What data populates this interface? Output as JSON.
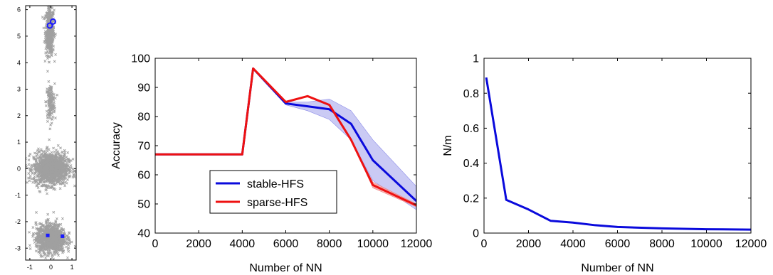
{
  "chart_data": [
    {
      "type": "scatter",
      "xlim": [
        -1.2,
        1.2
      ],
      "ylim": [
        -3.45,
        6.15
      ],
      "xticks": [
        -1,
        0,
        1
      ],
      "yticks": [
        -3,
        -2,
        -1,
        0,
        1,
        2,
        3,
        4,
        5,
        6
      ],
      "grid": false,
      "clusters": [
        {
          "cx": -0.05,
          "cy": 5.2,
          "sx": 0.1,
          "sy": 0.45,
          "n": 500
        },
        {
          "cx": -0.02,
          "cy": 2.5,
          "sx": 0.1,
          "sy": 0.35,
          "n": 160
        },
        {
          "cx": 0.0,
          "cy": 0.0,
          "sx": 0.4,
          "sy": 0.3,
          "n": 1300
        },
        {
          "cx": 0.0,
          "cy": -2.65,
          "sx": 0.35,
          "sy": 0.28,
          "n": 1000
        }
      ],
      "highlight_circles": [
        [
          -0.05,
          5.4
        ],
        [
          0.1,
          5.55
        ]
      ],
      "highlight_stars": [
        [
          -0.15,
          -2.52
        ],
        [
          0.55,
          -2.55
        ]
      ],
      "colors": {
        "background_points": "#a0a0a0",
        "highlight": "#1a1aff"
      }
    },
    {
      "type": "line",
      "xlabel": "Number of NN",
      "ylabel": "Accuracy",
      "xlim": [
        0,
        12000
      ],
      "ylim": [
        40,
        100
      ],
      "xticks": [
        0,
        2000,
        4000,
        6000,
        8000,
        10000,
        12000
      ],
      "yticks": [
        40,
        50,
        60,
        70,
        80,
        90,
        100
      ],
      "grid": false,
      "legend_position": "lower-center",
      "series": [
        {
          "name": "stable-HFS",
          "color": "#0a0adc",
          "x": [
            0,
            4000,
            4500,
            6000,
            7000,
            8000,
            9000,
            10000,
            12000
          ],
          "y": [
            67,
            67,
            96.5,
            84.5,
            83.5,
            82.5,
            77.5,
            65,
            51
          ],
          "band_upper": [
            67,
            67,
            96.5,
            85,
            85,
            86,
            82,
            72,
            56
          ],
          "band_lower": [
            67,
            67,
            96.5,
            84,
            82,
            79,
            72,
            58,
            48
          ]
        },
        {
          "name": "sparse-HFS",
          "color": "#ee1111",
          "x": [
            0,
            4000,
            4500,
            6000,
            7000,
            8000,
            9000,
            10000,
            12000
          ],
          "y": [
            67,
            67,
            96.5,
            85,
            87,
            84,
            72,
            56.5,
            49.5
          ],
          "band_upper": [
            67,
            67,
            96.5,
            85,
            87,
            84,
            72,
            57.5,
            50
          ],
          "band_lower": [
            67,
            67,
            96.5,
            85,
            87,
            84,
            72,
            55.5,
            49
          ]
        }
      ],
      "colors": {
        "band": "#b8b8f0"
      }
    },
    {
      "type": "line",
      "xlabel": "Number of NN",
      "ylabel": "N/m",
      "xlim": [
        0,
        12000
      ],
      "ylim": [
        0,
        1
      ],
      "xticks": [
        0,
        2000,
        4000,
        6000,
        8000,
        10000,
        12000
      ],
      "yticks": [
        0,
        0.2,
        0.4,
        0.6,
        0.8,
        1
      ],
      "grid": false,
      "series": [
        {
          "color": "#0a0adc",
          "x": [
            100,
            1000,
            2000,
            3000,
            4000,
            5000,
            6000,
            8000,
            10000,
            12000
          ],
          "y": [
            0.89,
            0.19,
            0.135,
            0.07,
            0.06,
            0.045,
            0.035,
            0.027,
            0.022,
            0.02
          ]
        }
      ]
    }
  ]
}
